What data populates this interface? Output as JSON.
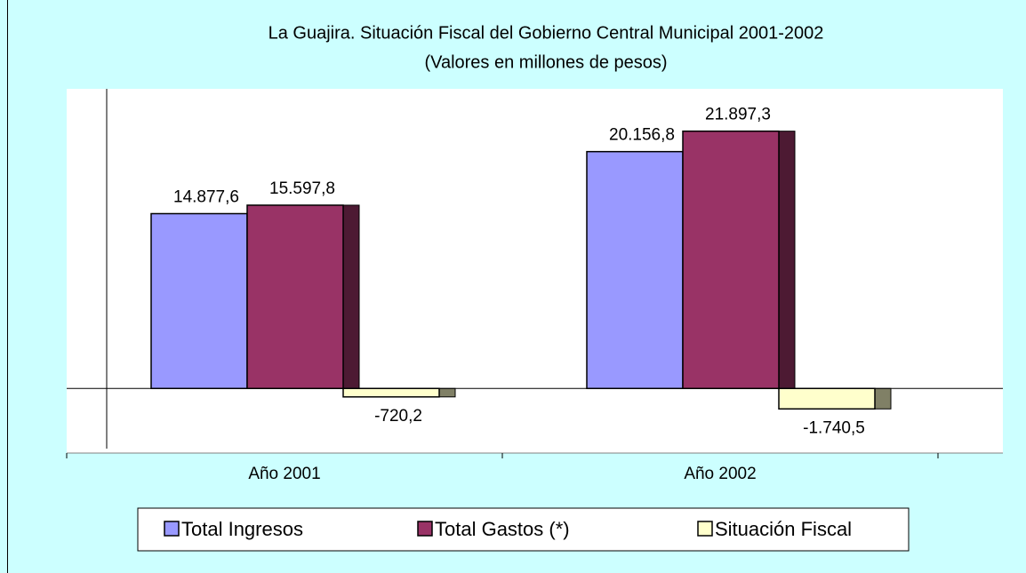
{
  "chart_data": {
    "type": "bar",
    "title": "La Guajira. Situación Fiscal del Gobierno Central Municipal 2001-2002",
    "subtitle": "(Valores en millones de pesos)",
    "categories": [
      "Año 2001",
      "Año 2002"
    ],
    "series": [
      {
        "name": "Total Ingresos",
        "color": "#9999ff",
        "values": [
          14877.6,
          20156.8
        ],
        "value_labels": [
          "14.877,6",
          "20.156,8"
        ]
      },
      {
        "name": "Total Gastos (*)",
        "color": "#993366",
        "values": [
          15597.8,
          21897.3
        ],
        "value_labels": [
          "15.597,8",
          "21.897,3"
        ]
      },
      {
        "name": "Situación Fiscal",
        "color": "#ffffcc",
        "values": [
          -720.2,
          -1740.5
        ],
        "value_labels": [
          "-720,2",
          "-1.740,5"
        ]
      }
    ],
    "ylim": [
      -5500,
      25500
    ],
    "legend": "bottom"
  }
}
